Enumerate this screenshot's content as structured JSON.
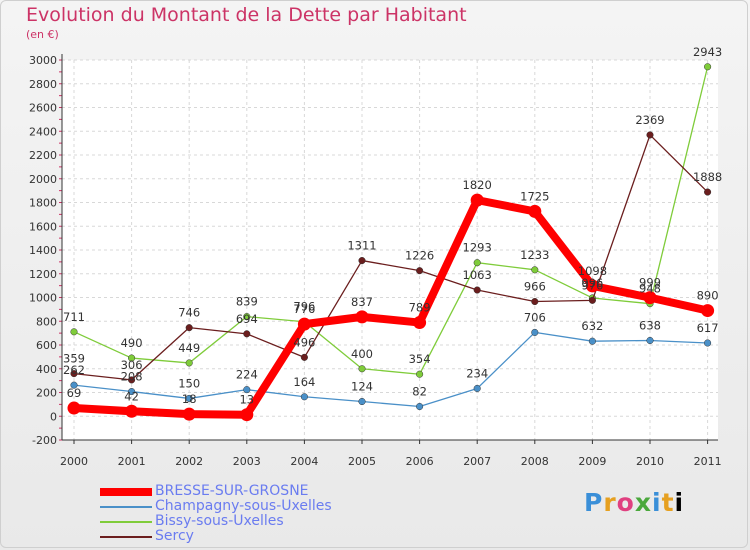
{
  "title": "Evolution du Montant de la Dette par Habitant",
  "subtitle": "(en €)",
  "chart_data": {
    "type": "line",
    "x": [
      "2000",
      "2001",
      "2002",
      "2003",
      "2004",
      "2005",
      "2006",
      "2007",
      "2008",
      "2009",
      "2010",
      "2011"
    ],
    "ylim": [
      -200,
      3000
    ],
    "yticks": [
      -200,
      0,
      200,
      400,
      600,
      800,
      1000,
      1200,
      1400,
      1600,
      1800,
      2000,
      2200,
      2400,
      2600,
      2800,
      3000
    ],
    "grid": true,
    "legend_position": "bottom-left",
    "series": [
      {
        "name": "BRESSE-SUR-GROSNE",
        "color": "#ff0000",
        "values": [
          69,
          42,
          18,
          13,
          776,
          837,
          789,
          1820,
          1725,
          1098,
          999,
          890
        ],
        "labels": [
          "69",
          "42",
          "18",
          "13",
          "776",
          "837",
          "789",
          "1820",
          "1725",
          "1098",
          "999",
          "890"
        ]
      },
      {
        "name": "Champagny-sous-Uxelles",
        "color": "#4a90c8",
        "values": [
          262,
          208,
          150,
          224,
          164,
          124,
          82,
          234,
          706,
          632,
          638,
          617
        ],
        "labels": [
          "262",
          "208",
          "150",
          "224",
          "164",
          "124",
          "82",
          "234",
          "706",
          "632",
          "638",
          "617"
        ]
      },
      {
        "name": "Bissy-sous-Uxelles",
        "color": "#7fcc3a",
        "values": [
          711,
          490,
          449,
          839,
          796,
          400,
          354,
          1293,
          1233,
          996,
          948,
          2943
        ],
        "labels": [
          "711",
          "490",
          "449",
          "839",
          "796",
          "400",
          "354",
          "1293",
          "1233",
          "996",
          "948",
          "2943"
        ]
      },
      {
        "name": "Sercy",
        "color": "#6b1e1e",
        "values": [
          359,
          306,
          746,
          694,
          496,
          1311,
          1226,
          1063,
          966,
          976,
          2369,
          1888
        ],
        "labels": [
          "359",
          "306",
          "746",
          "694",
          "496",
          "1311",
          "1226",
          "1063",
          "966",
          "976",
          "2369",
          "1888"
        ]
      }
    ]
  },
  "logo": {
    "letters": [
      "P",
      "r",
      "o",
      "x",
      "i",
      "t",
      "i"
    ]
  }
}
